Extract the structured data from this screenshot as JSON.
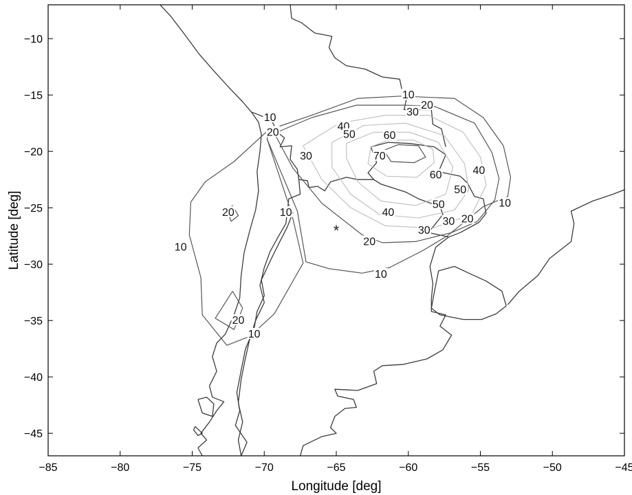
{
  "axes": {
    "xlabel": "Longitude [deg]",
    "ylabel": "Latitude [deg]",
    "xlim": [
      -85,
      -45
    ],
    "ylim": [
      -47,
      -7
    ],
    "xticks": [
      -85,
      -80,
      -75,
      -70,
      -65,
      -60,
      -55,
      -50,
      -45
    ],
    "yticks": [
      -10,
      -15,
      -20,
      -25,
      -30,
      -35,
      -40,
      -45
    ],
    "xtick_labels": [
      "−85",
      "−80",
      "−75",
      "−70",
      "−65",
      "−60",
      "−55",
      "−50",
      "−45"
    ],
    "ytick_labels": [
      "−10",
      "−15",
      "−20",
      "−25",
      "−30",
      "−35",
      "−40",
      "−45"
    ]
  },
  "epicenter": {
    "lon": -65,
    "lat": -27,
    "symbol": "*"
  },
  "colors": {
    "coastline": "#3a3a3a",
    "contour_dark": "#555555",
    "contour_light": "#bdbdbd",
    "background": "#ffffff"
  },
  "contour_labels": [
    {
      "text": "10",
      "lon": -60,
      "lat": -15
    },
    {
      "text": "20",
      "lon": -58.7,
      "lat": -15.9
    },
    {
      "text": "30",
      "lon": -59.7,
      "lat": -16.5
    },
    {
      "text": "10",
      "lon": -69.6,
      "lat": -17
    },
    {
      "text": "20",
      "lon": -69.4,
      "lat": -18.3
    },
    {
      "text": "40",
      "lon": -64.5,
      "lat": -17.8
    },
    {
      "text": "50",
      "lon": -64.1,
      "lat": -18.5
    },
    {
      "text": "60",
      "lon": -61.3,
      "lat": -18.6
    },
    {
      "text": "30",
      "lon": -67.1,
      "lat": -20.4
    },
    {
      "text": "70",
      "lon": -62,
      "lat": -20.4
    },
    {
      "text": "60",
      "lon": -58.1,
      "lat": -22.1
    },
    {
      "text": "40",
      "lon": -55.1,
      "lat": -21.7
    },
    {
      "text": "50",
      "lon": -56.4,
      "lat": -23.4
    },
    {
      "text": "40",
      "lon": -61.4,
      "lat": -25.4
    },
    {
      "text": "50",
      "lon": -57.9,
      "lat": -24.7
    },
    {
      "text": "30",
      "lon": -57.2,
      "lat": -26.2
    },
    {
      "text": "30",
      "lon": -58.9,
      "lat": -27
    },
    {
      "text": "20",
      "lon": -55.9,
      "lat": -26
    },
    {
      "text": "10",
      "lon": -53.3,
      "lat": -24.6
    },
    {
      "text": "20",
      "lon": -72.5,
      "lat": -25.4
    },
    {
      "text": "10",
      "lon": -68.5,
      "lat": -25.4
    },
    {
      "text": "10",
      "lon": -75.8,
      "lat": -28.5
    },
    {
      "text": "20",
      "lon": -62.7,
      "lat": -28
    },
    {
      "text": "10",
      "lon": -61.9,
      "lat": -30.9
    },
    {
      "text": "20",
      "lon": -71.8,
      "lat": -35
    },
    {
      "text": "10",
      "lon": -70.7,
      "lat": -36.2
    }
  ],
  "coastlines": [
    [
      [
        -77.3,
        -6.9
      ],
      [
        -76.5,
        -8.0
      ],
      [
        -75.6,
        -9.5
      ],
      [
        -74.5,
        -11.4
      ],
      [
        -73.4,
        -13.0
      ],
      [
        -72.4,
        -14.4
      ],
      [
        -71.5,
        -15.6
      ],
      [
        -70.9,
        -16.5
      ],
      [
        -70.4,
        -17.4
      ],
      [
        -70.2,
        -18.5
      ],
      [
        -70.3,
        -20.0
      ],
      [
        -70.5,
        -21.8
      ],
      [
        -70.4,
        -23.5
      ],
      [
        -70.6,
        -25.2
      ],
      [
        -71.0,
        -27.0
      ],
      [
        -71.4,
        -29.0
      ],
      [
        -71.6,
        -31.0
      ],
      [
        -71.7,
        -33.0
      ],
      [
        -72.1,
        -34.5
      ],
      [
        -72.7,
        -36.2
      ],
      [
        -73.3,
        -37.0
      ],
      [
        -73.6,
        -38.2
      ],
      [
        -73.3,
        -39.5
      ],
      [
        -73.8,
        -40.8
      ],
      [
        -73.6,
        -41.8
      ],
      [
        -72.8,
        -42.2
      ],
      [
        -73.3,
        -43.0
      ],
      [
        -73.8,
        -44.0
      ],
      [
        -74.4,
        -45.0
      ],
      [
        -74.0,
        -45.6
      ],
      [
        -74.6,
        -46.3
      ],
      [
        -74.3,
        -47.0
      ]
    ],
    [
      [
        -70.9,
        -16.5
      ],
      [
        -69.5,
        -17.2
      ],
      [
        -69.1,
        -18.3
      ],
      [
        -68.6,
        -18.8
      ],
      [
        -68.9,
        -19.6
      ],
      [
        -68.1,
        -19.5
      ],
      [
        -68.2,
        -20.7
      ],
      [
        -67.7,
        -21.6
      ],
      [
        -67.6,
        -22.5
      ],
      [
        -67.0,
        -22.6
      ],
      [
        -66.9,
        -23.2
      ],
      [
        -66.3,
        -23.1
      ],
      [
        -65.8,
        -23.5
      ],
      [
        -65.4,
        -22.7
      ],
      [
        -64.3,
        -22.3
      ],
      [
        -63.5,
        -22.5
      ],
      [
        -62.4,
        -22.5
      ],
      [
        -62.8,
        -21.9
      ],
      [
        -62.2,
        -21.0
      ],
      [
        -62.6,
        -19.6
      ],
      [
        -61.4,
        -19.2
      ],
      [
        -59.9,
        -19.3
      ],
      [
        -58.2,
        -19.6
      ],
      [
        -57.4,
        -20.3
      ],
      [
        -57.9,
        -21.8
      ],
      [
        -56.4,
        -22.2
      ],
      [
        -55.9,
        -22.8
      ],
      [
        -55.4,
        -24.0
      ],
      [
        -54.8,
        -24.2
      ],
      [
        -54.6,
        -25.5
      ],
      [
        -55.1,
        -26.3
      ],
      [
        -56.4,
        -27.2
      ],
      [
        -57.2,
        -27.6
      ],
      [
        -58.6,
        -27.2
      ],
      [
        -57.6,
        -25.6
      ],
      [
        -57.8,
        -24.9
      ],
      [
        -59.3,
        -24.2
      ],
      [
        -60.2,
        -23.6
      ],
      [
        -61.9,
        -22.9
      ],
      [
        -62.4,
        -22.5
      ]
    ],
    [
      [
        -67.6,
        -22.5
      ],
      [
        -67.5,
        -23.8
      ],
      [
        -68.3,
        -24.2
      ],
      [
        -68.5,
        -26.4
      ],
      [
        -69.0,
        -27.5
      ],
      [
        -69.6,
        -28.9
      ],
      [
        -70.0,
        -30.3
      ],
      [
        -70.3,
        -31.9
      ],
      [
        -70.0,
        -33.4
      ],
      [
        -70.6,
        -35.0
      ],
      [
        -71.0,
        -36.6
      ],
      [
        -71.3,
        -38.3
      ],
      [
        -71.6,
        -40.2
      ],
      [
        -71.8,
        -42.3
      ],
      [
        -71.5,
        -44.0
      ],
      [
        -71.8,
        -45.6
      ],
      [
        -71.6,
        -47.0
      ]
    ],
    [
      [
        -71.6,
        -47.0
      ],
      [
        -71.2,
        -45.8
      ],
      [
        -72.0,
        -44.3
      ],
      [
        -71.7,
        -43.0
      ],
      [
        -71.9,
        -41.4
      ],
      [
        -71.6,
        -39.4
      ],
      [
        -71.3,
        -37.5
      ],
      [
        -70.7,
        -35.7
      ],
      [
        -70.5,
        -34.2
      ],
      [
        -70.0,
        -32.8
      ],
      [
        -70.2,
        -31.4
      ],
      [
        -69.5,
        -29.5
      ],
      [
        -69.0,
        -28.2
      ],
      [
        -68.4,
        -26.7
      ],
      [
        -68.0,
        -25.4
      ]
    ],
    [
      [
        -68.2,
        -7.0
      ],
      [
        -68.1,
        -8.2
      ],
      [
        -67.4,
        -8.6
      ],
      [
        -66.5,
        -9.5
      ],
      [
        -65.3,
        -9.8
      ],
      [
        -65.5,
        -10.8
      ],
      [
        -65.1,
        -11.7
      ],
      [
        -64.3,
        -12.4
      ],
      [
        -63.0,
        -12.7
      ],
      [
        -61.8,
        -13.4
      ],
      [
        -60.6,
        -13.6
      ],
      [
        -60.4,
        -14.8
      ],
      [
        -60.1,
        -15.2
      ],
      [
        -60.3,
        -16.3
      ],
      [
        -58.4,
        -16.3
      ],
      [
        -58.3,
        -17.6
      ],
      [
        -57.7,
        -18.0
      ],
      [
        -57.4,
        -19.6
      ]
    ],
    [
      [
        -57.2,
        -27.6
      ],
      [
        -58.1,
        -28.5
      ],
      [
        -58.5,
        -30.2
      ],
      [
        -58.3,
        -31.7
      ],
      [
        -58.4,
        -33.1
      ],
      [
        -58.4,
        -34.2
      ],
      [
        -57.4,
        -34.5
      ],
      [
        -57.8,
        -35.5
      ],
      [
        -57.0,
        -36.3
      ],
      [
        -57.6,
        -37.6
      ],
      [
        -58.7,
        -38.4
      ],
      [
        -60.4,
        -38.9
      ],
      [
        -61.8,
        -39.0
      ],
      [
        -62.4,
        -39.5
      ],
      [
        -62.2,
        -40.6
      ],
      [
        -63.5,
        -41.2
      ],
      [
        -65.1,
        -41.1
      ],
      [
        -64.9,
        -41.7
      ],
      [
        -63.8,
        -42.0
      ],
      [
        -63.6,
        -42.7
      ],
      [
        -64.4,
        -42.8
      ],
      [
        -65.1,
        -43.5
      ],
      [
        -65.4,
        -44.5
      ],
      [
        -65.0,
        -45.0
      ],
      [
        -66.0,
        -45.3
      ],
      [
        -67.3,
        -46.1
      ],
      [
        -67.5,
        -47.0
      ]
    ],
    [
      [
        -53.2,
        -33.7
      ],
      [
        -53.9,
        -34.4
      ],
      [
        -54.9,
        -34.9
      ],
      [
        -56.2,
        -34.9
      ],
      [
        -57.8,
        -34.5
      ],
      [
        -58.4,
        -33.9
      ],
      [
        -58.2,
        -32.5
      ],
      [
        -57.9,
        -30.6
      ],
      [
        -56.8,
        -30.2
      ],
      [
        -55.8,
        -30.8
      ],
      [
        -54.6,
        -31.5
      ],
      [
        -53.5,
        -32.4
      ],
      [
        -53.2,
        -33.7
      ]
    ],
    [
      [
        -53.1,
        -33.6
      ],
      [
        -52.3,
        -32.4
      ],
      [
        -51.0,
        -31.0
      ],
      [
        -50.2,
        -29.5
      ],
      [
        -48.7,
        -28.0
      ],
      [
        -48.5,
        -26.4
      ],
      [
        -48.7,
        -25.3
      ],
      [
        -47.2,
        -24.4
      ],
      [
        -45.8,
        -23.8
      ],
      [
        -45.0,
        -23.4
      ]
    ],
    [
      [
        -74.6,
        -42.0
      ],
      [
        -74.3,
        -43.2
      ],
      [
        -73.6,
        -43.5
      ],
      [
        -73.5,
        -42.4
      ],
      [
        -74.0,
        -41.8
      ],
      [
        -74.6,
        -42.0
      ]
    ],
    [
      [
        -74.8,
        -44.4
      ],
      [
        -74.3,
        -45.0
      ],
      [
        -74.6,
        -45.2
      ],
      [
        -74.9,
        -44.7
      ],
      [
        -74.8,
        -44.4
      ]
    ]
  ],
  "contours": [
    {
      "level": 10,
      "style": "dark",
      "points": [
        [
          -69.7,
          -18.1
        ],
        [
          -66.5,
          -16.7
        ],
        [
          -63.5,
          -15.3
        ],
        [
          -60.5,
          -15.1
        ],
        [
          -56.8,
          -15.3
        ],
        [
          -54.8,
          -17.0
        ],
        [
          -53.4,
          -19.5
        ],
        [
          -52.9,
          -22.3
        ],
        [
          -53.1,
          -24.0
        ],
        [
          -54.8,
          -24.9
        ],
        [
          -57.3,
          -27.5
        ],
        [
          -59.0,
          -28.8
        ],
        [
          -61.3,
          -30.3
        ],
        [
          -63.2,
          -30.8
        ],
        [
          -65.5,
          -30.4
        ],
        [
          -67.1,
          -29.8
        ],
        [
          -67.7,
          -25.3
        ],
        [
          -69.8,
          -18.9
        ],
        [
          -69.7,
          -18.1
        ]
      ]
    },
    {
      "level": 20,
      "style": "dark",
      "points": [
        [
          -69.3,
          -18.4
        ],
        [
          -66.7,
          -17.0
        ],
        [
          -63.6,
          -15.9
        ],
        [
          -60.3,
          -15.9
        ],
        [
          -58.2,
          -16.0
        ],
        [
          -55.4,
          -17.5
        ],
        [
          -54.2,
          -20.1
        ],
        [
          -53.7,
          -22.4
        ],
        [
          -54.0,
          -24.3
        ],
        [
          -55.2,
          -26.2
        ],
        [
          -57.0,
          -27.2
        ],
        [
          -59.5,
          -28.0
        ],
        [
          -61.8,
          -28.1
        ],
        [
          -63.2,
          -27.4
        ],
        [
          -66.0,
          -24.6
        ],
        [
          -68.0,
          -21.5
        ],
        [
          -69.3,
          -18.4
        ]
      ]
    },
    {
      "level": 30,
      "style": "light",
      "points": [
        [
          -67.3,
          -19.5
        ],
        [
          -64.8,
          -17.5
        ],
        [
          -61.6,
          -16.8
        ],
        [
          -58.6,
          -16.8
        ],
        [
          -56.2,
          -18.3
        ],
        [
          -55.0,
          -20.5
        ],
        [
          -54.6,
          -23.0
        ],
        [
          -55.6,
          -25.6
        ],
        [
          -58.3,
          -26.8
        ],
        [
          -61.6,
          -26.6
        ],
        [
          -64.0,
          -25.0
        ],
        [
          -66.0,
          -22.5
        ],
        [
          -67.3,
          -19.5
        ]
      ]
    },
    {
      "level": 40,
      "style": "light",
      "points": [
        [
          -65.3,
          -19.2
        ],
        [
          -63.1,
          -17.7
        ],
        [
          -60.2,
          -17.5
        ],
        [
          -57.5,
          -18.6
        ],
        [
          -56.1,
          -21.1
        ],
        [
          -55.8,
          -23.4
        ],
        [
          -56.8,
          -25.2
        ],
        [
          -59.3,
          -25.9
        ],
        [
          -62.0,
          -25.6
        ],
        [
          -64.0,
          -23.8
        ],
        [
          -65.3,
          -21.4
        ],
        [
          -65.3,
          -19.2
        ]
      ]
    },
    {
      "level": 50,
      "style": "light",
      "points": [
        [
          -64.3,
          -19.3
        ],
        [
          -62.4,
          -18.3
        ],
        [
          -59.9,
          -18.3
        ],
        [
          -57.9,
          -19.2
        ],
        [
          -56.9,
          -21.4
        ],
        [
          -57.4,
          -23.8
        ],
        [
          -59.5,
          -24.8
        ],
        [
          -61.9,
          -24.4
        ],
        [
          -63.5,
          -22.7
        ],
        [
          -64.3,
          -20.6
        ],
        [
          -64.3,
          -19.3
        ]
      ]
    },
    {
      "level": 60,
      "style": "light",
      "points": [
        [
          -62.6,
          -19.6
        ],
        [
          -61.4,
          -19.0
        ],
        [
          -59.6,
          -19.0
        ],
        [
          -58.3,
          -19.8
        ],
        [
          -58.2,
          -21.0
        ],
        [
          -59.4,
          -22.3
        ],
        [
          -61.5,
          -22.2
        ],
        [
          -62.8,
          -21.1
        ],
        [
          -62.6,
          -19.6
        ]
      ]
    },
    {
      "level": 70,
      "style": "dark",
      "points": [
        [
          -61.7,
          -19.9
        ],
        [
          -60.7,
          -19.4
        ],
        [
          -59.3,
          -19.5
        ],
        [
          -58.8,
          -20.5
        ],
        [
          -59.6,
          -21.0
        ],
        [
          -61.2,
          -20.9
        ],
        [
          -61.7,
          -19.9
        ]
      ]
    },
    {
      "level": 10,
      "style": "dark",
      "points": [
        [
          -69.7,
          -18.1
        ],
        [
          -72.1,
          -20.9
        ],
        [
          -74.1,
          -22.7
        ],
        [
          -75.1,
          -24.5
        ],
        [
          -75.2,
          -27.4
        ],
        [
          -74.4,
          -31.2
        ],
        [
          -74.3,
          -34.5
        ],
        [
          -72.6,
          -37.2
        ],
        [
          -71.0,
          -36.4
        ],
        [
          -69.3,
          -34.4
        ],
        [
          -67.3,
          -29.9
        ],
        [
          -68.1,
          -25.5
        ],
        [
          -69.8,
          -18.9
        ]
      ]
    },
    {
      "level": 20,
      "style": "dark",
      "points": [
        [
          -72.2,
          -24.8
        ],
        [
          -72.6,
          -25.2
        ],
        [
          -72.3,
          -26.2
        ],
        [
          -71.8,
          -25.7
        ],
        [
          -72.2,
          -24.8
        ]
      ]
    },
    {
      "level": 20,
      "style": "dark",
      "points": [
        [
          -72.2,
          -32.4
        ],
        [
          -73.4,
          -34.8
        ],
        [
          -72.1,
          -35.8
        ],
        [
          -71.5,
          -33.9
        ],
        [
          -72.2,
          -32.4
        ]
      ]
    }
  ]
}
